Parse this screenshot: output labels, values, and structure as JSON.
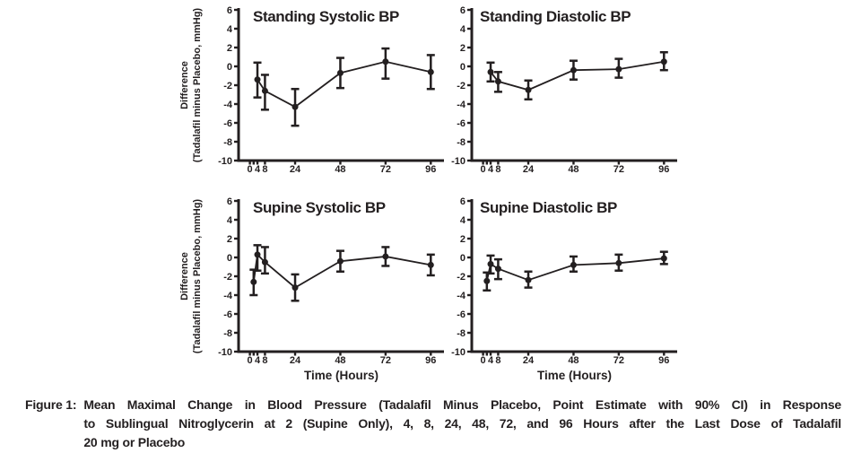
{
  "figure": {
    "caption": {
      "label": "Figure 1:",
      "lines": [
        "Mean Maximal Change in Blood Pressure (Tadalafil Minus Placebo, Point Estimate with 90% CI) in Response",
        "to Sublingual Nitroglycerin at 2 (Supine Only), 4, 8, 24, 48, 72, and 96 Hours after the Last Dose of Tadalafil",
        "20 mg or Placebo"
      ]
    }
  },
  "axes": {
    "ylabel_line1": "Difference",
    "ylabel_line2": "(Tadalafil minus Placebo, mmHg)",
    "xlabel": "Time (Hours)",
    "y_ticks": [
      6,
      4,
      2,
      0,
      -2,
      -4,
      -6,
      -8,
      -10
    ],
    "x_tick_marks": [
      0,
      2,
      4,
      8,
      24,
      48,
      72,
      96
    ],
    "x_tick_labels": [
      0,
      4,
      8,
      24,
      48,
      72,
      96
    ],
    "ylim": [
      -10,
      6
    ],
    "xlim": [
      -6,
      103
    ],
    "grid": false,
    "error_bars": "90% CI"
  },
  "chart_data": [
    {
      "type": "line",
      "title": "Standing Systolic BP",
      "x": [
        4,
        8,
        24,
        48,
        72,
        96
      ],
      "y": [
        -1.4,
        -2.6,
        -4.3,
        -0.7,
        0.5,
        -0.6
      ],
      "ci_low": [
        -3.3,
        -4.6,
        -6.3,
        -2.3,
        -1.3,
        -2.4
      ],
      "ci_high": [
        0.4,
        -0.9,
        -2.4,
        0.9,
        1.9,
        1.2
      ]
    },
    {
      "type": "line",
      "title": "Standing Diastolic BP",
      "x": [
        4,
        8,
        24,
        48,
        72,
        96
      ],
      "y": [
        -0.6,
        -1.6,
        -2.5,
        -0.4,
        -0.3,
        0.5
      ],
      "ci_low": [
        -1.6,
        -2.7,
        -3.5,
        -1.4,
        -1.2,
        -0.4
      ],
      "ci_high": [
        0.4,
        -0.6,
        -1.5,
        0.6,
        0.8,
        1.5
      ]
    },
    {
      "type": "line",
      "title": "Supine Systolic BP",
      "x": [
        2,
        4,
        8,
        24,
        48,
        72,
        96
      ],
      "y": [
        -2.6,
        0.3,
        -0.5,
        -3.2,
        -0.4,
        0.1,
        -0.8
      ],
      "ci_low": [
        -4.0,
        -1.4,
        -1.7,
        -4.6,
        -1.5,
        -0.9,
        -1.9
      ],
      "ci_high": [
        -1.3,
        1.3,
        1.1,
        -1.8,
        0.7,
        1.1,
        0.3
      ]
    },
    {
      "type": "line",
      "title": "Supine Diastolic BP",
      "x": [
        2,
        4,
        8,
        24,
        48,
        72,
        96
      ],
      "y": [
        -2.5,
        -0.7,
        -1.2,
        -2.4,
        -0.8,
        -0.6,
        -0.1
      ],
      "ci_low": [
        -3.5,
        -1.7,
        -2.3,
        -3.2,
        -1.5,
        -1.4,
        -0.7
      ],
      "ci_high": [
        -1.6,
        0.2,
        -0.2,
        -1.5,
        0.1,
        0.3,
        0.6
      ]
    }
  ],
  "colors": {
    "ink": "#231f20",
    "background": "#ffffff"
  }
}
